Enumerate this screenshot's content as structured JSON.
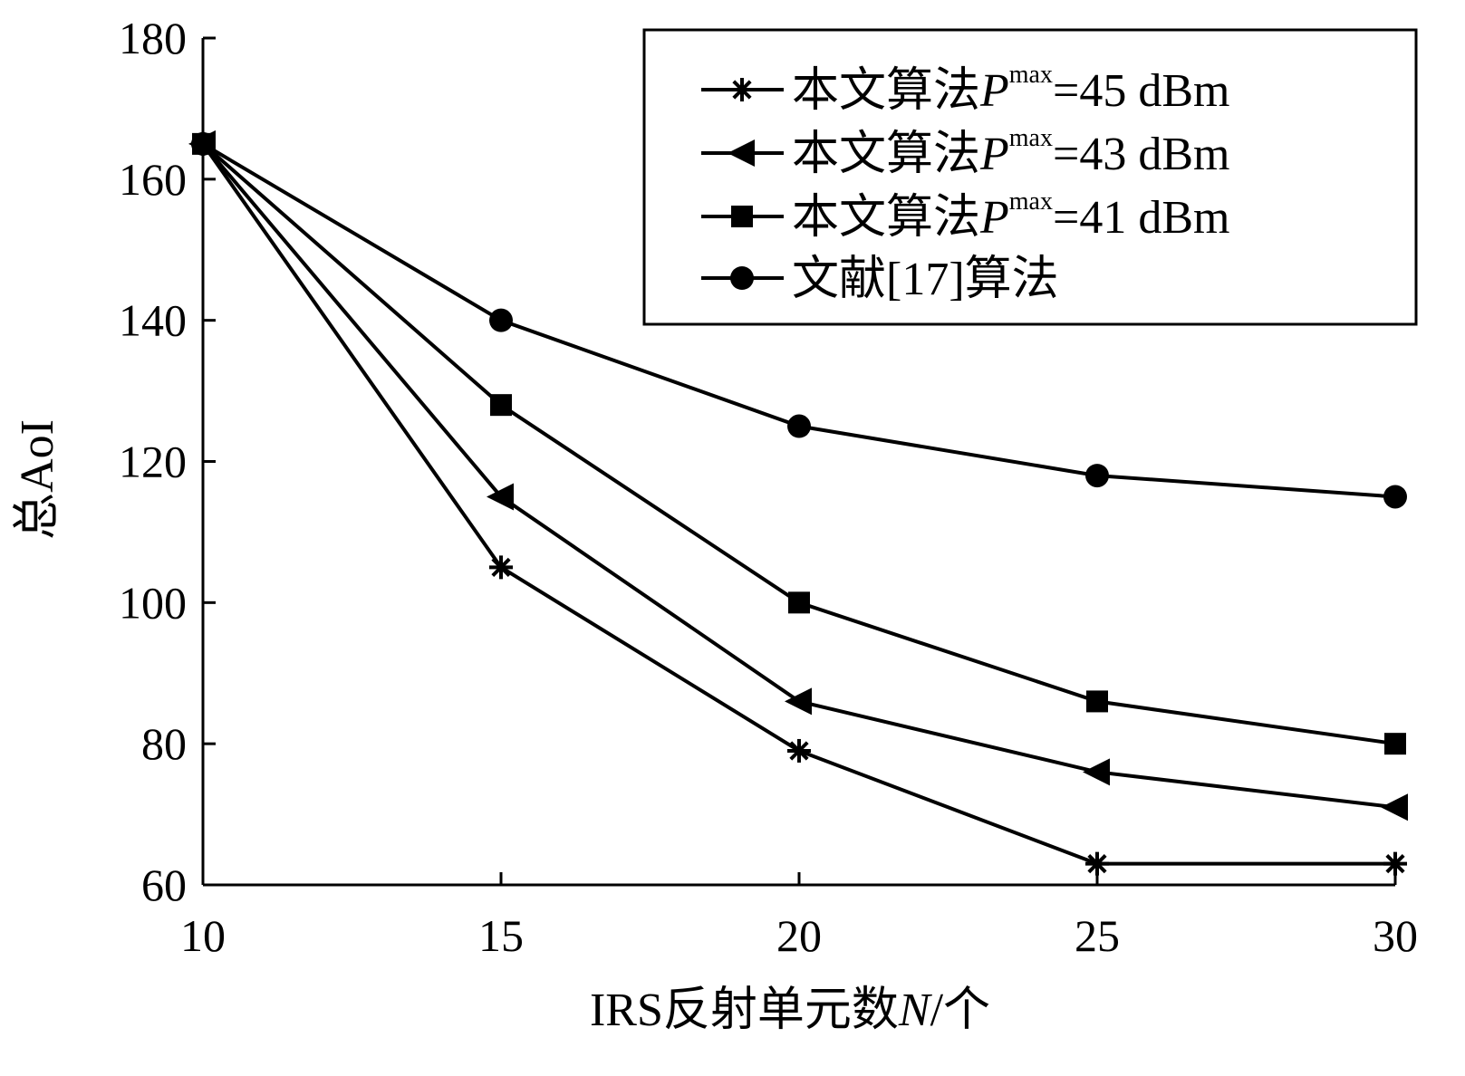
{
  "chart_data": {
    "type": "line",
    "title": "",
    "xlabel": "IRS反射单元数N/个",
    "xlabel_parts": {
      "prefix": "IRS反射单元数",
      "var": "N",
      "suffix": "/个"
    },
    "ylabel": "总AoI",
    "xlim": [
      10,
      30
    ],
    "ylim": [
      60,
      180
    ],
    "xticks": [
      10,
      15,
      20,
      25,
      30
    ],
    "yticks": [
      60,
      80,
      100,
      120,
      140,
      160,
      180
    ],
    "grid": false,
    "legend_position": "top-right",
    "x": [
      10,
      15,
      20,
      25,
      30
    ],
    "series": [
      {
        "name": "本文算法Pmax=45 dBm",
        "label_parts": {
          "prefix": "本文算法",
          "var": "P",
          "sup": "max",
          "suffix": "=45 dBm"
        },
        "marker": "asterisk",
        "values": [
          165,
          105,
          79,
          63,
          63
        ]
      },
      {
        "name": "本文算法Pmax=43 dBm",
        "label_parts": {
          "prefix": "本文算法",
          "var": "P",
          "sup": "max",
          "suffix": "=43 dBm"
        },
        "marker": "triangle-left",
        "values": [
          165,
          115,
          86,
          76,
          71
        ]
      },
      {
        "name": "本文算法Pmax=41 dBm",
        "label_parts": {
          "prefix": "本文算法",
          "var": "P",
          "sup": "max",
          "suffix": "=41 dBm"
        },
        "marker": "square",
        "values": [
          165,
          128,
          100,
          86,
          80
        ]
      },
      {
        "name": "文献[17]算法",
        "label_parts": {
          "prefix": "文献[17]算法",
          "var": "",
          "sup": "",
          "suffix": ""
        },
        "marker": "circle",
        "values": [
          165,
          140,
          125,
          118,
          115
        ]
      }
    ],
    "line_color": "#000000"
  }
}
